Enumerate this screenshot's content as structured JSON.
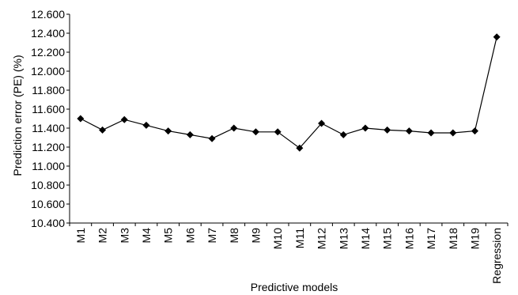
{
  "chart_data": {
    "type": "line",
    "xlabel": "Predictive models",
    "ylabel": "Prediction error (PE) (%)",
    "categories": [
      "M1",
      "M2",
      "M3",
      "M4",
      "M5",
      "M6",
      "M7",
      "M8",
      "M9",
      "M10",
      "M11",
      "M12",
      "M13",
      "M14",
      "M15",
      "M16",
      "M17",
      "M18",
      "M19",
      "Regression"
    ],
    "series": [
      {
        "values": [
          11.5,
          11.38,
          11.49,
          11.43,
          11.37,
          11.33,
          11.29,
          11.4,
          11.36,
          11.36,
          11.19,
          11.45,
          11.33,
          11.4,
          11.38,
          11.37,
          11.35,
          11.35,
          11.37,
          12.36
        ]
      }
    ],
    "ylim": [
      10.4,
      12.6
    ],
    "yticks": [
      "10.400",
      "10.600",
      "10.800",
      "11.000",
      "11.200",
      "11.400",
      "11.600",
      "11.800",
      "12.000",
      "12.200",
      "12.400",
      "12.600"
    ],
    "grid": false,
    "legend": "none",
    "marker": "diamond",
    "line_color": "#000000"
  }
}
